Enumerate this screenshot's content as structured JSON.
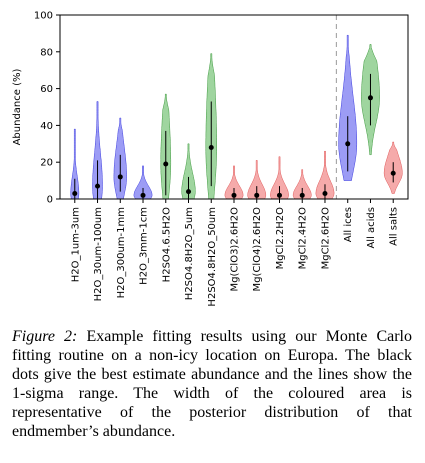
{
  "chart_data": {
    "type": "violin",
    "ylabel": "Abundance (%)",
    "ylim": [
      0,
      100
    ],
    "yticks": [
      0,
      20,
      40,
      60,
      80,
      100
    ],
    "grid": false,
    "separator_after_index": 11,
    "separator_style": "dashed",
    "colors": {
      "blue": "#7b7bf2",
      "green": "#7fc77f",
      "red": "#f28e8e",
      "point": "#000000"
    },
    "categories": [
      {
        "name": "H2O_1um-3um",
        "group": "ice",
        "estimate": 3,
        "low": 0,
        "high": 11,
        "range": [
          0,
          38
        ],
        "width": 0.18
      },
      {
        "name": "H2O_30um-100um",
        "group": "ice",
        "estimate": 7,
        "low": 0,
        "high": 21,
        "range": [
          0,
          53
        ],
        "width": 0.22
      },
      {
        "name": "H2O_300um-1mm",
        "group": "ice",
        "estimate": 12,
        "low": 4,
        "high": 24,
        "range": [
          0,
          44
        ],
        "width": 0.28
      },
      {
        "name": "H2O_3mm-1cm",
        "group": "ice",
        "estimate": 2,
        "low": 0,
        "high": 6,
        "range": [
          0,
          18
        ],
        "width": 0.4
      },
      {
        "name": "H2SO4.6.5H2O",
        "group": "acid",
        "estimate": 19,
        "low": 2,
        "high": 37,
        "range": [
          0,
          57
        ],
        "width": 0.22
      },
      {
        "name": "H2SO4.8H2O_5um",
        "group": "acid",
        "estimate": 4,
        "low": 0,
        "high": 12,
        "range": [
          0,
          30
        ],
        "width": 0.3
      },
      {
        "name": "H2SO4.8H2O_50um",
        "group": "acid",
        "estimate": 28,
        "low": 7,
        "high": 53,
        "range": [
          0,
          79
        ],
        "width": 0.24
      },
      {
        "name": "Mg(ClO3)2.6H2O",
        "group": "salt",
        "estimate": 2,
        "low": 0,
        "high": 6,
        "range": [
          0,
          18
        ],
        "width": 0.4
      },
      {
        "name": "Mg(ClO4)2.6H2O",
        "group": "salt",
        "estimate": 2,
        "low": 0,
        "high": 7,
        "range": [
          0,
          21
        ],
        "width": 0.4
      },
      {
        "name": "MgCl2.2H2O",
        "group": "salt",
        "estimate": 2,
        "low": 0,
        "high": 7,
        "range": [
          0,
          23
        ],
        "width": 0.4
      },
      {
        "name": "MgCl2.4H2O",
        "group": "salt",
        "estimate": 2,
        "low": 0,
        "high": 6,
        "range": [
          0,
          16
        ],
        "width": 0.4
      },
      {
        "name": "MgCl2.6H2O",
        "group": "salt",
        "estimate": 3,
        "low": 0,
        "high": 8,
        "range": [
          0,
          26
        ],
        "width": 0.4
      },
      {
        "name": "All ices",
        "group": "ice",
        "estimate": 30,
        "low": 15,
        "high": 45,
        "range": [
          10,
          89
        ],
        "width": 0.4
      },
      {
        "name": "All acids",
        "group": "acid",
        "estimate": 55,
        "low": 40,
        "high": 68,
        "range": [
          24,
          84
        ],
        "width": 0.4
      },
      {
        "name": "All salts",
        "group": "salt",
        "estimate": 14,
        "low": 9,
        "high": 20,
        "range": [
          3,
          31
        ],
        "width": 0.4
      }
    ]
  },
  "caption": {
    "label": "Figure 2:",
    "text": " Example fitting results using our Monte Carlo fitting routine on a non-icy location on Europa. The black dots give the best estimate abundance and the lines show the 1-sigma range. The width of the coloured area is representative of the posterior distribution of that endmember’s abundance."
  }
}
